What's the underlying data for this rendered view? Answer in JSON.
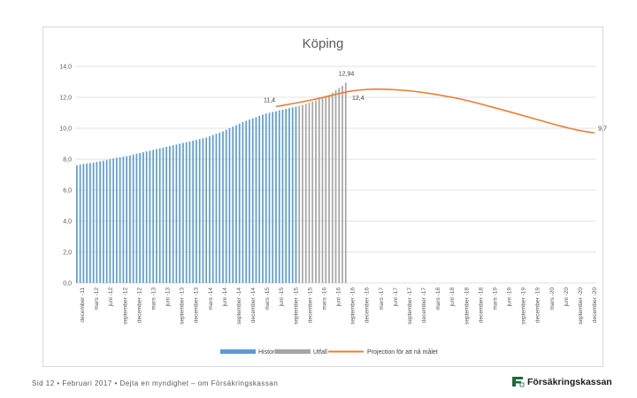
{
  "footer": {
    "text": "Sid 12 • Februari 2017 • Dejta en myndighet – om Försäkringskassan",
    "logo_name": "Försäkringskassan"
  },
  "colors": {
    "historia": "#5b9bd5",
    "utfall": "#a5a5a5",
    "projection": "#ed7d31",
    "grid": "#d9d9d9",
    "text": "#595959"
  },
  "chart_data": {
    "type": "bar+line",
    "title": "Köping",
    "ylim": [
      0,
      14
    ],
    "yticks": [
      "0,0",
      "2,0",
      "4,0",
      "6,0",
      "8,0",
      "10,0",
      "12,0",
      "14,0"
    ],
    "grid": true,
    "legend_position": "bottom",
    "start": "december -11",
    "end": "december -20",
    "x_tick_labels": [
      "december -11",
      "mars -12",
      "juni -12",
      "september -12",
      "december -12",
      "mars -13",
      "juni -13",
      "september -13",
      "december -13",
      "mars -14",
      "juni -14",
      "september -14",
      "december -14",
      "mars -15",
      "juni -15",
      "september -15",
      "december -15",
      "mars -16",
      "juni -16",
      "september -16",
      "december -16",
      "mars -17",
      "juni -17",
      "september -17",
      "december -17",
      "mars -18",
      "juni -18",
      "september -18",
      "december -18",
      "mars -19",
      "juni -19",
      "september -19",
      "december -19",
      "mars -20",
      "juni -20",
      "september -20",
      "december -20"
    ],
    "series": [
      {
        "name": "Historia",
        "type": "bar",
        "start_index": 0,
        "values": [
          7.6,
          7.65,
          7.7,
          7.72,
          7.75,
          7.78,
          7.82,
          7.86,
          7.9,
          7.95,
          8.0,
          8.05,
          8.1,
          8.13,
          8.17,
          8.2,
          8.25,
          8.3,
          8.35,
          8.4,
          8.45,
          8.5,
          8.55,
          8.6,
          8.65,
          8.7,
          8.75,
          8.8,
          8.85,
          8.9,
          8.95,
          9.0,
          9.05,
          9.1,
          9.15,
          9.2,
          9.25,
          9.3,
          9.35,
          9.4,
          9.48,
          9.56,
          9.64,
          9.72,
          9.8,
          9.9,
          10.0,
          10.1,
          10.2,
          10.3,
          10.4,
          10.48,
          10.56,
          10.64,
          10.72,
          10.8,
          10.88,
          10.95,
          11.0,
          11.05,
          11.1,
          11.15,
          11.2,
          11.25,
          11.3,
          11.35,
          11.4
        ]
      },
      {
        "name": "Utfall",
        "type": "bar",
        "start_index": 67,
        "values": [
          11.45,
          11.5,
          11.58,
          11.65,
          11.72,
          11.8,
          11.88,
          11.95,
          12.05,
          12.15,
          12.3,
          12.45,
          12.6,
          12.75,
          12.94
        ]
      },
      {
        "name": "Projection för att nå målet",
        "type": "line",
        "points": [
          [
            60,
            11.4
          ],
          [
            64,
            11.55
          ],
          [
            69,
            11.75
          ],
          [
            74,
            11.98
          ],
          [
            80,
            12.3
          ],
          [
            84,
            12.45
          ],
          [
            88,
            12.52
          ],
          [
            92,
            12.53
          ],
          [
            98,
            12.47
          ],
          [
            104,
            12.33
          ],
          [
            110,
            12.12
          ],
          [
            116,
            11.88
          ],
          [
            122,
            11.55
          ],
          [
            128,
            11.2
          ],
          [
            134,
            10.85
          ],
          [
            140,
            10.48
          ],
          [
            146,
            10.12
          ],
          [
            152,
            9.82
          ],
          [
            156,
            9.7
          ]
        ]
      }
    ],
    "annotations": [
      {
        "text": "11,4",
        "x": 60,
        "y": 11.4
      },
      {
        "text": "12,94",
        "x": 81,
        "y": 12.94
      },
      {
        "text": "12,4",
        "x": 84,
        "y": 12.4
      },
      {
        "text": "9,7",
        "x": 156,
        "y": 9.7
      }
    ]
  }
}
